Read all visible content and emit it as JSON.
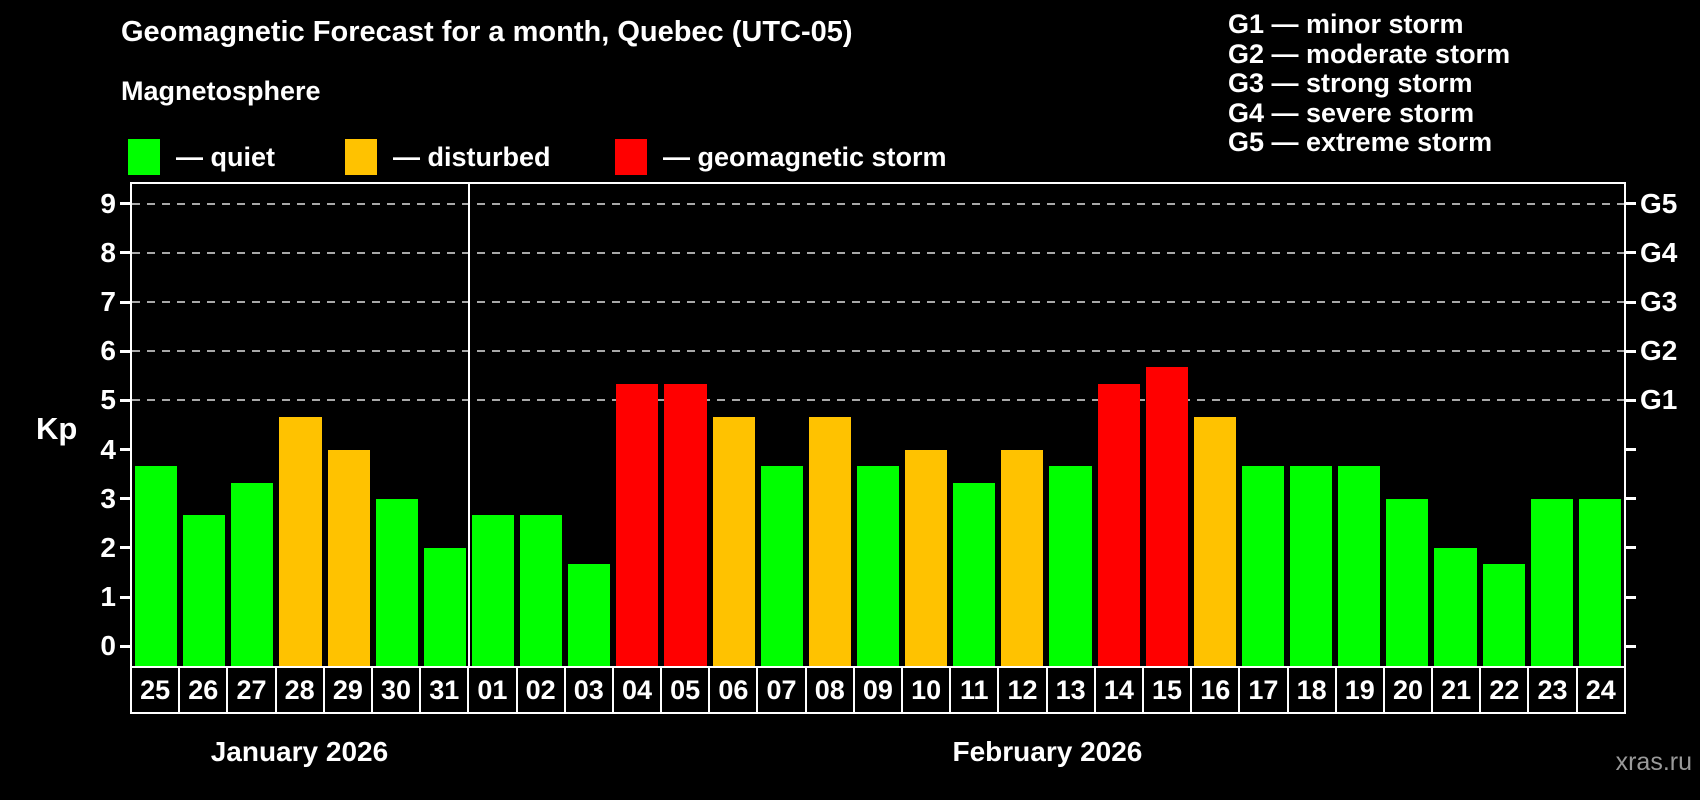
{
  "title": "Geomagnetic Forecast for a month, Quebec (UTC-05)",
  "subtitle": "Magnetosphere",
  "watermark": "xras.ru",
  "legend": {
    "items": [
      {
        "key": "quiet",
        "label": "— quiet",
        "color": "#00ff00"
      },
      {
        "key": "disturbed",
        "label": "— disturbed",
        "color": "#ffc200"
      },
      {
        "key": "storm",
        "label": "— geomagnetic storm",
        "color": "#ff0000"
      }
    ]
  },
  "g_legend": {
    "lines": [
      "G1 — minor storm",
      "G2 — moderate storm",
      "G3 — strong storm",
      "G4 — severe storm",
      "G5 — extreme storm"
    ]
  },
  "y_axis": {
    "label": "Kp",
    "ticks": [
      0,
      1,
      2,
      3,
      4,
      5,
      6,
      7,
      8,
      9
    ],
    "grid_levels": [
      5,
      6,
      7,
      8,
      9
    ]
  },
  "right_axis": {
    "ticks": [
      0,
      1,
      2,
      3,
      4,
      5,
      6,
      7,
      8,
      9
    ],
    "labels": [
      {
        "kp": 5,
        "label": "G1"
      },
      {
        "kp": 6,
        "label": "G2"
      },
      {
        "kp": 7,
        "label": "G3"
      },
      {
        "kp": 8,
        "label": "G4"
      },
      {
        "kp": 9,
        "label": "G5"
      }
    ]
  },
  "months": [
    {
      "label": "January 2026",
      "days": 7
    },
    {
      "label": "February 2026",
      "days": 24
    }
  ],
  "chart_data": {
    "type": "bar",
    "title": "Geomagnetic Forecast for a month, Quebec (UTC-05)",
    "xlabel": "",
    "ylabel": "Kp",
    "ylim": [
      0,
      9
    ],
    "display_ylim": [
      -0.4,
      9.4
    ],
    "grid": "horizontal dashed lines at Kp 5,6,7,8,9",
    "legend_position": "top",
    "categories": [
      "Jan 25",
      "Jan 26",
      "Jan 27",
      "Jan 28",
      "Jan 29",
      "Jan 30",
      "Jan 31",
      "Feb 01",
      "Feb 02",
      "Feb 03",
      "Feb 04",
      "Feb 05",
      "Feb 06",
      "Feb 07",
      "Feb 08",
      "Feb 09",
      "Feb 10",
      "Feb 11",
      "Feb 12",
      "Feb 13",
      "Feb 14",
      "Feb 15",
      "Feb 16",
      "Feb 17",
      "Feb 18",
      "Feb 19",
      "Feb 20",
      "Feb 21",
      "Feb 22",
      "Feb 23",
      "Feb 24"
    ],
    "day_labels": [
      "25",
      "26",
      "27",
      "28",
      "29",
      "30",
      "31",
      "01",
      "02",
      "03",
      "04",
      "05",
      "06",
      "07",
      "08",
      "09",
      "10",
      "11",
      "12",
      "13",
      "14",
      "15",
      "16",
      "17",
      "18",
      "19",
      "20",
      "21",
      "22",
      "23",
      "24"
    ],
    "values": [
      3.67,
      2.67,
      3.33,
      4.67,
      4.0,
      3.0,
      2.0,
      2.67,
      2.67,
      1.67,
      5.33,
      5.33,
      4.67,
      3.67,
      4.67,
      3.67,
      4.0,
      3.33,
      4.0,
      3.67,
      5.33,
      5.67,
      4.67,
      3.67,
      3.67,
      3.67,
      3.0,
      2.0,
      1.67,
      3.0,
      3.0
    ],
    "statuses": [
      "quiet",
      "quiet",
      "quiet",
      "disturbed",
      "disturbed",
      "quiet",
      "quiet",
      "quiet",
      "quiet",
      "quiet",
      "storm",
      "storm",
      "disturbed",
      "quiet",
      "disturbed",
      "quiet",
      "disturbed",
      "quiet",
      "disturbed",
      "quiet",
      "storm",
      "storm",
      "disturbed",
      "quiet",
      "quiet",
      "quiet",
      "quiet",
      "quiet",
      "quiet",
      "quiet",
      "quiet"
    ]
  }
}
